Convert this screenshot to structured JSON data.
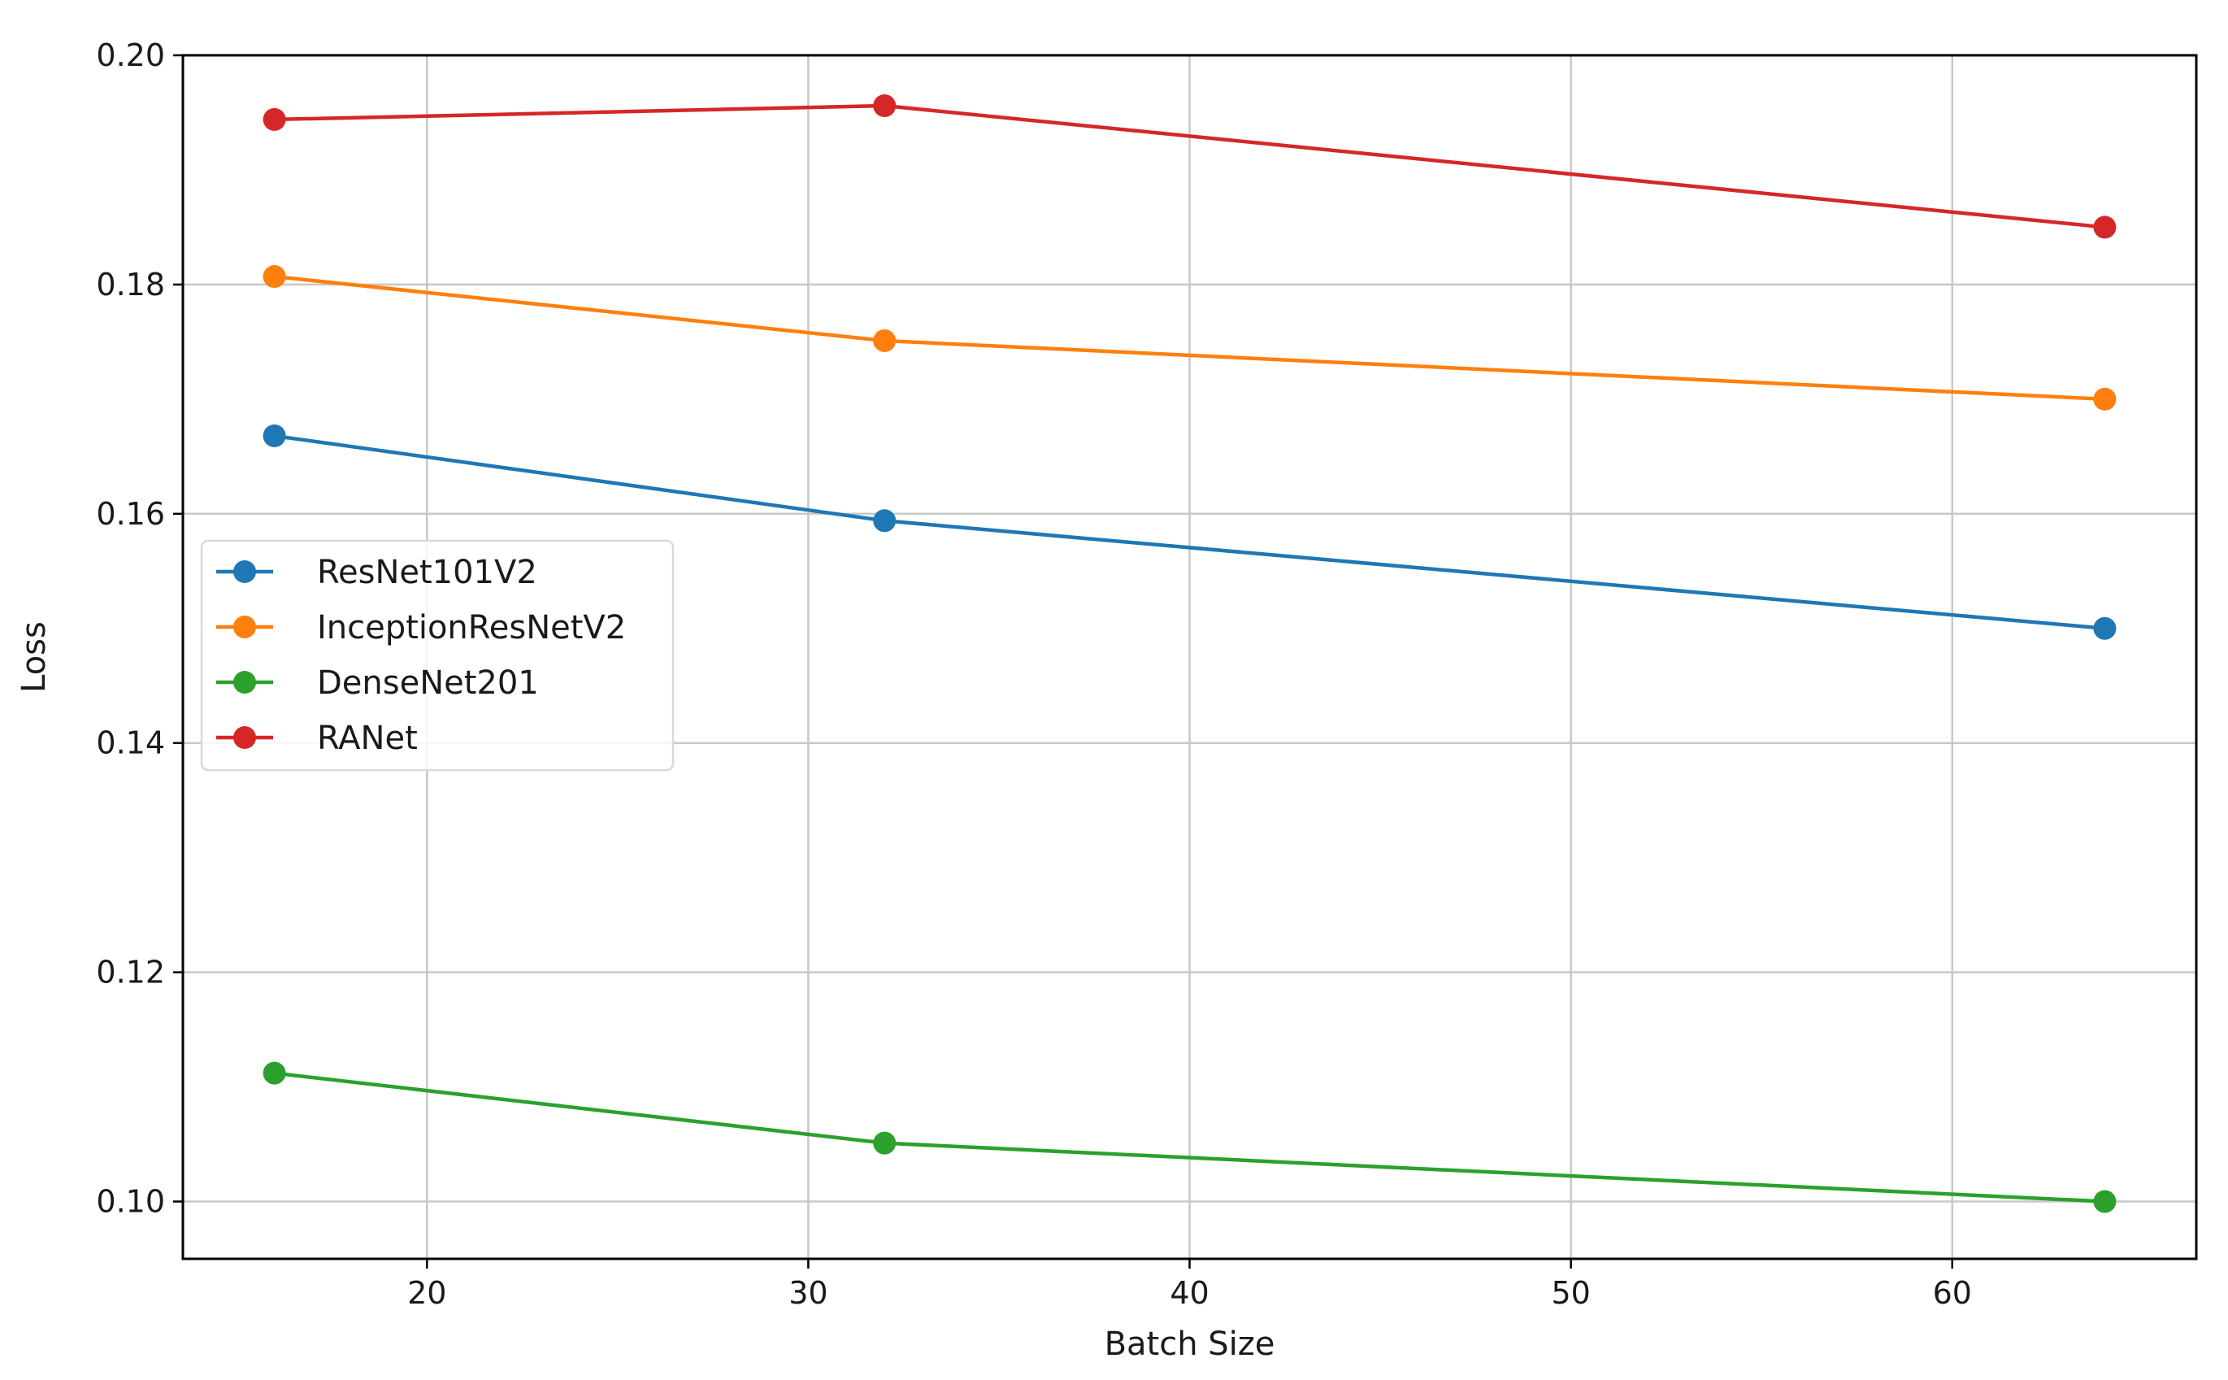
{
  "chart_data": {
    "type": "line",
    "title": "",
    "xlabel": "Batch Size",
    "ylabel": "Loss",
    "xlim": [
      13.6,
      66.4
    ],
    "ylim": [
      0.095,
      0.2
    ],
    "xticks": [
      20,
      30,
      40,
      50,
      60
    ],
    "yticks": [
      0.1,
      0.12,
      0.14,
      0.16,
      0.18,
      0.2
    ],
    "xtick_labels": [
      "20",
      "30",
      "40",
      "50",
      "60"
    ],
    "ytick_labels": [
      "0.10",
      "0.12",
      "0.14",
      "0.16",
      "0.18",
      "0.20"
    ],
    "grid": true,
    "legend_position": "center-left",
    "x": [
      16,
      32,
      64
    ],
    "series": [
      {
        "name": "ResNet101V2",
        "color": "#1f77b4",
        "values": [
          0.1668,
          0.1594,
          0.15
        ]
      },
      {
        "name": "InceptionResNetV2",
        "color": "#ff7f0e",
        "values": [
          0.1807,
          0.1751,
          0.17
        ]
      },
      {
        "name": "DenseNet201",
        "color": "#2ca02c",
        "values": [
          0.1112,
          0.1051,
          0.1
        ]
      },
      {
        "name": "RANet",
        "color": "#d62728",
        "values": [
          0.1944,
          0.1956,
          0.185
        ]
      }
    ]
  }
}
